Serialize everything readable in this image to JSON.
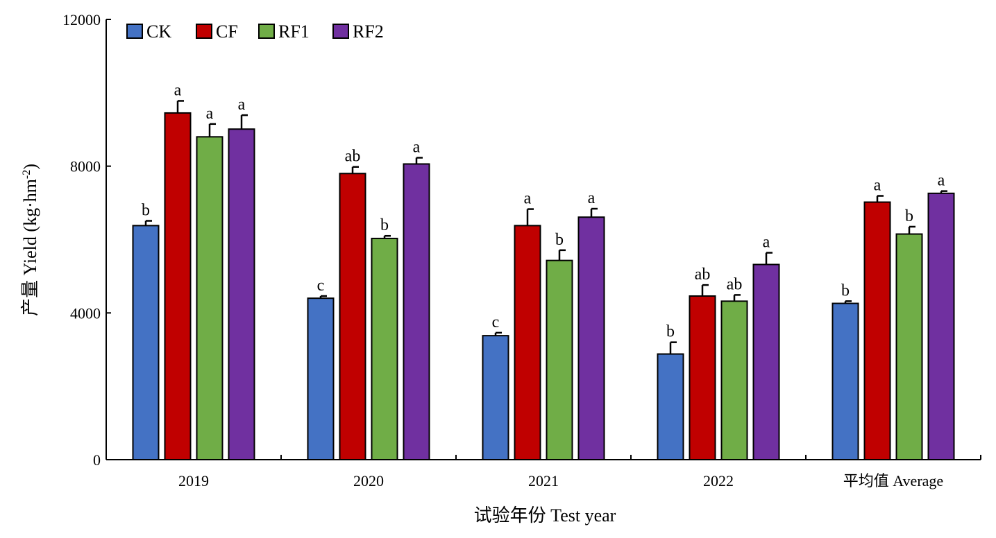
{
  "chart_data": {
    "type": "bar",
    "xlabel": "试验年份 Test year",
    "ylabel_cn": "产量",
    "ylabel_en": "Yield (kg·hm",
    "ylabel_sup": "-2",
    "ylabel_close": ")",
    "ylim": [
      0,
      12000
    ],
    "yticks": [
      0,
      4000,
      8000,
      12000
    ],
    "yticklabels": [
      "0",
      "4000",
      "8000",
      "12000"
    ],
    "categories": [
      "2019",
      "2020",
      "2021",
      "2022",
      "平均值 Average"
    ],
    "legend_position": "top-left",
    "error_bars": true,
    "series": [
      {
        "name": "CK",
        "color": "#4472C4",
        "values": [
          6380,
          4400,
          3380,
          2880,
          4260
        ],
        "errors": [
          130,
          60,
          80,
          320,
          60
        ],
        "labels": [
          "b",
          "c",
          "c",
          "b",
          "b"
        ]
      },
      {
        "name": "CF",
        "color": "#C00000",
        "values": [
          9450,
          7800,
          6380,
          4460,
          7020
        ],
        "errors": [
          330,
          180,
          450,
          300,
          170
        ],
        "labels": [
          "a",
          "ab",
          "a",
          "ab",
          "a"
        ]
      },
      {
        "name": "RF1",
        "color": "#70AD47",
        "values": [
          8800,
          6030,
          5430,
          4320,
          6150
        ],
        "errors": [
          350,
          70,
          280,
          170,
          200
        ],
        "labels": [
          "a",
          "b",
          "b",
          "ab",
          "b"
        ]
      },
      {
        "name": "RF2",
        "color": "#7030A0",
        "values": [
          9010,
          8060,
          6610,
          5320,
          7260
        ],
        "errors": [
          380,
          170,
          230,
          320,
          60
        ],
        "labels": [
          "a",
          "a",
          "a",
          "a",
          "a"
        ]
      }
    ]
  }
}
